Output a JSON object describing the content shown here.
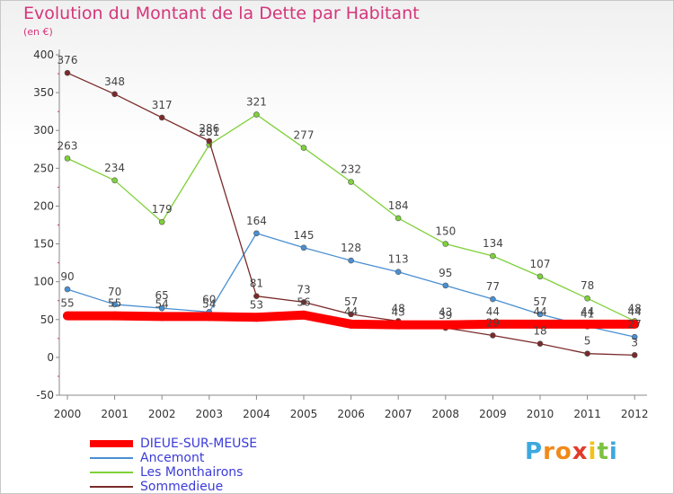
{
  "chart_data": {
    "type": "line",
    "title": "Evolution du Montant de la Dette par Habitant",
    "subtitle": "(en €)",
    "x": [
      "2000",
      "2001",
      "2002",
      "2003",
      "2004",
      "2005",
      "2006",
      "2007",
      "2008",
      "2009",
      "2010",
      "2011",
      "2012"
    ],
    "ylim": [
      -50,
      400
    ],
    "yticks": [
      "-50",
      "0",
      "50",
      "100",
      "150",
      "200",
      "250",
      "300",
      "350",
      "400"
    ],
    "grid": false,
    "legend_position": "bottom-left",
    "series": [
      {
        "name": "DIEUE-SUR-MEUSE",
        "color": "#ff0000",
        "values": [
          55,
          55,
          54,
          54,
          53,
          56,
          44,
          43,
          43,
          44,
          44,
          44,
          44
        ],
        "labels": [
          "55",
          "55",
          "54",
          "54",
          "53",
          "56",
          "44",
          "43",
          "43",
          "44",
          "44",
          "44",
          "44"
        ]
      },
      {
        "name": "Ancemont",
        "color": "#4a8fd1",
        "values": [
          90,
          70,
          65,
          60,
          164,
          145,
          128,
          113,
          95,
          77,
          57,
          41,
          27
        ],
        "labels": [
          "90",
          "70",
          "65",
          "60",
          "164",
          "145",
          "128",
          "113",
          "95",
          "77",
          "57",
          "41",
          "27"
        ]
      },
      {
        "name": "Les Monthairons",
        "color": "#7fd13a",
        "values": [
          263,
          234,
          179,
          281,
          321,
          277,
          232,
          184,
          150,
          134,
          107,
          78,
          48
        ],
        "labels": [
          "263",
          "234",
          "179",
          "281",
          "321",
          "277",
          "232",
          "184",
          "150",
          "134",
          "107",
          "78",
          "48"
        ]
      },
      {
        "name": "Sommedieue",
        "color": "#7a2a2a",
        "values": [
          376,
          348,
          317,
          286,
          81,
          73,
          57,
          48,
          39,
          29,
          18,
          5,
          3
        ],
        "labels": [
          "376",
          "348",
          "317",
          "286",
          "81",
          "73",
          "57",
          "48",
          "39",
          "29",
          "18",
          "5",
          "3"
        ]
      }
    ]
  },
  "logo": {
    "letters": [
      "P",
      "r",
      "o",
      "x",
      "i",
      "t",
      "i"
    ],
    "colors": [
      "#3da8e0",
      "#f08a1a",
      "#f08a1a",
      "#e23a2a",
      "#f2c21a",
      "#7dc242",
      "#3da8e0"
    ]
  }
}
